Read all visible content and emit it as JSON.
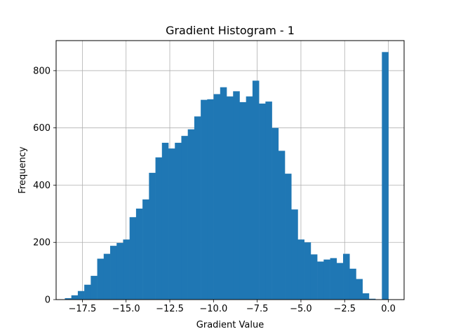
{
  "chart_data": {
    "type": "bar",
    "title": "Gradient Histogram - 1",
    "xlabel": "Gradient Value",
    "ylabel": "Frequency",
    "xlim": [
      -19.0,
      0.9
    ],
    "ylim": [
      0,
      905
    ],
    "grid": true,
    "bar_color": "#1f77b4",
    "grid_color": "#b0b0b0",
    "xticks": [
      {
        "value": -17.5,
        "label": "−17.5"
      },
      {
        "value": -15.0,
        "label": "−15.0"
      },
      {
        "value": -12.5,
        "label": "−12.5"
      },
      {
        "value": -10.0,
        "label": "−10.0"
      },
      {
        "value": -7.5,
        "label": "−7.5"
      },
      {
        "value": -5.0,
        "label": "−5.0"
      },
      {
        "value": -2.5,
        "label": "−2.5"
      },
      {
        "value": 0.0,
        "label": "0.0"
      }
    ],
    "yticks": [
      {
        "value": 0,
        "label": "0"
      },
      {
        "value": 200,
        "label": "200"
      },
      {
        "value": 400,
        "label": "400"
      },
      {
        "value": 600,
        "label": "600"
      },
      {
        "value": 800,
        "label": "800"
      }
    ],
    "bin_start": -18.5,
    "bin_width": 0.37,
    "values": [
      5,
      15,
      30,
      52,
      83,
      143,
      160,
      188,
      198,
      210,
      288,
      318,
      350,
      443,
      497,
      548,
      528,
      548,
      572,
      595,
      640,
      698,
      700,
      718,
      742,
      710,
      728,
      690,
      710,
      765,
      685,
      692,
      600,
      520,
      440,
      315,
      210,
      200,
      158,
      133,
      140,
      145,
      128,
      160,
      108,
      72,
      22,
      3,
      0,
      865
    ]
  }
}
